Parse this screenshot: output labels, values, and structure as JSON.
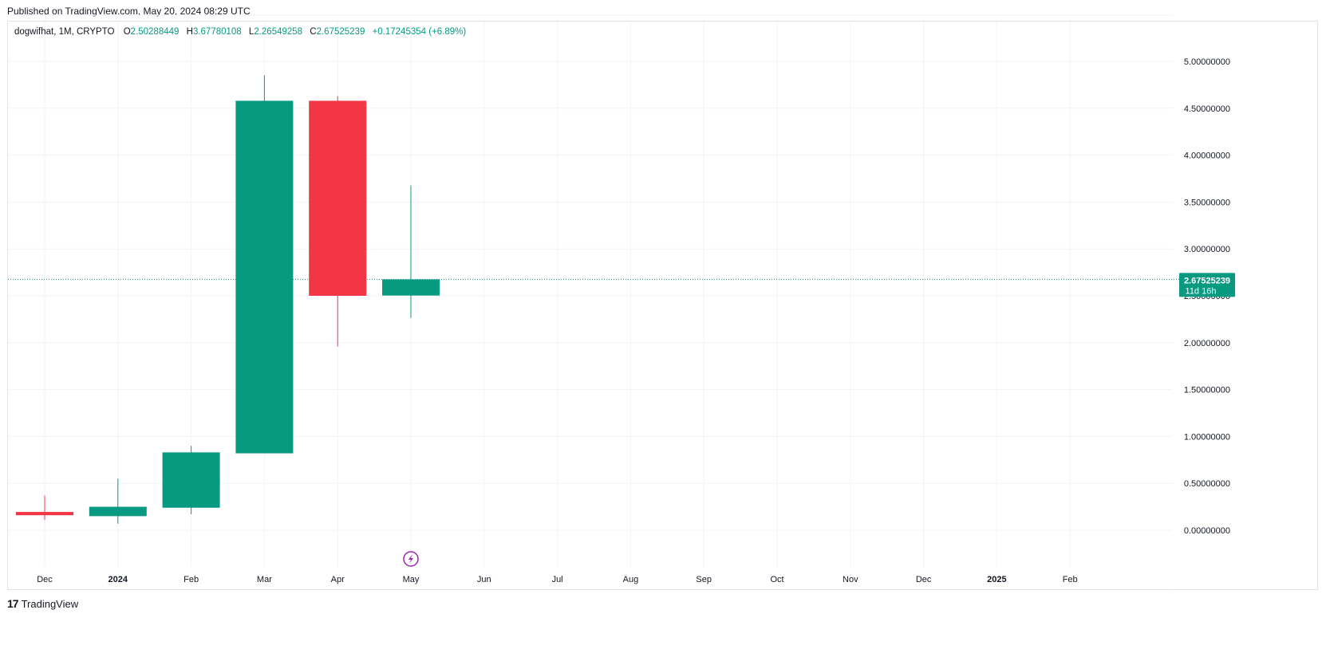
{
  "header": {
    "published": "Published on TradingView.com, May 20, 2024 08:29 UTC"
  },
  "legend": {
    "symbol": "dogwifhat, 1M, CRYPTO",
    "open_label": "O",
    "open": "2.50288449",
    "high_label": "H",
    "high": "3.67780108",
    "low_label": "L",
    "low": "2.26549258",
    "close_label": "C",
    "close": "2.67525239",
    "change": "+0.17245354 (+6.89%)"
  },
  "colors": {
    "up": "#089981",
    "down": "#f23645",
    "grid": "#f0f3fa",
    "event": "#9c27b0"
  },
  "chart_data": {
    "type": "candlestick",
    "x_ticks": [
      "Dec",
      "2024",
      "Feb",
      "Mar",
      "Apr",
      "May",
      "Jun",
      "Jul",
      "Aug",
      "Sep",
      "Oct",
      "Nov",
      "Dec",
      "2025",
      "Feb"
    ],
    "x_ticks_bold": [
      "2024",
      "2025"
    ],
    "y_ticks": [
      "0.00000000",
      "0.50000000",
      "1.00000000",
      "1.50000000",
      "2.00000000",
      "2.50000000",
      "3.00000000",
      "3.50000000",
      "4.00000000",
      "4.50000000",
      "5.00000000"
    ],
    "y_tick_values": [
      0,
      0.5,
      1.0,
      1.5,
      2.0,
      2.5,
      3.0,
      3.5,
      4.0,
      4.5,
      5.0
    ],
    "ylim": [
      -0.43,
      5.5
    ],
    "candles": [
      {
        "period": "Dec",
        "open": 0.195,
        "high": 0.37,
        "low": 0.11,
        "close": 0.16
      },
      {
        "period": "2024",
        "open": 0.15,
        "high": 0.55,
        "low": 0.07,
        "close": 0.25
      },
      {
        "period": "Feb",
        "open": 0.24,
        "high": 0.9,
        "low": 0.17,
        "close": 0.83
      },
      {
        "period": "Mar",
        "open": 0.82,
        "high": 4.85,
        "low": 0.82,
        "close": 4.58
      },
      {
        "period": "Apr",
        "open": 4.58,
        "high": 4.63,
        "low": 1.96,
        "close": 2.5
      },
      {
        "period": "May",
        "open": 2.50288449,
        "high": 3.67780108,
        "low": 2.26549258,
        "close": 2.67525239
      }
    ],
    "last_price": {
      "value": 2.67525239,
      "label": "2.67525239",
      "countdown": "11d 16h"
    },
    "event_marker_period": "May"
  },
  "footer": {
    "logo": "17",
    "brand": "TradingView"
  }
}
